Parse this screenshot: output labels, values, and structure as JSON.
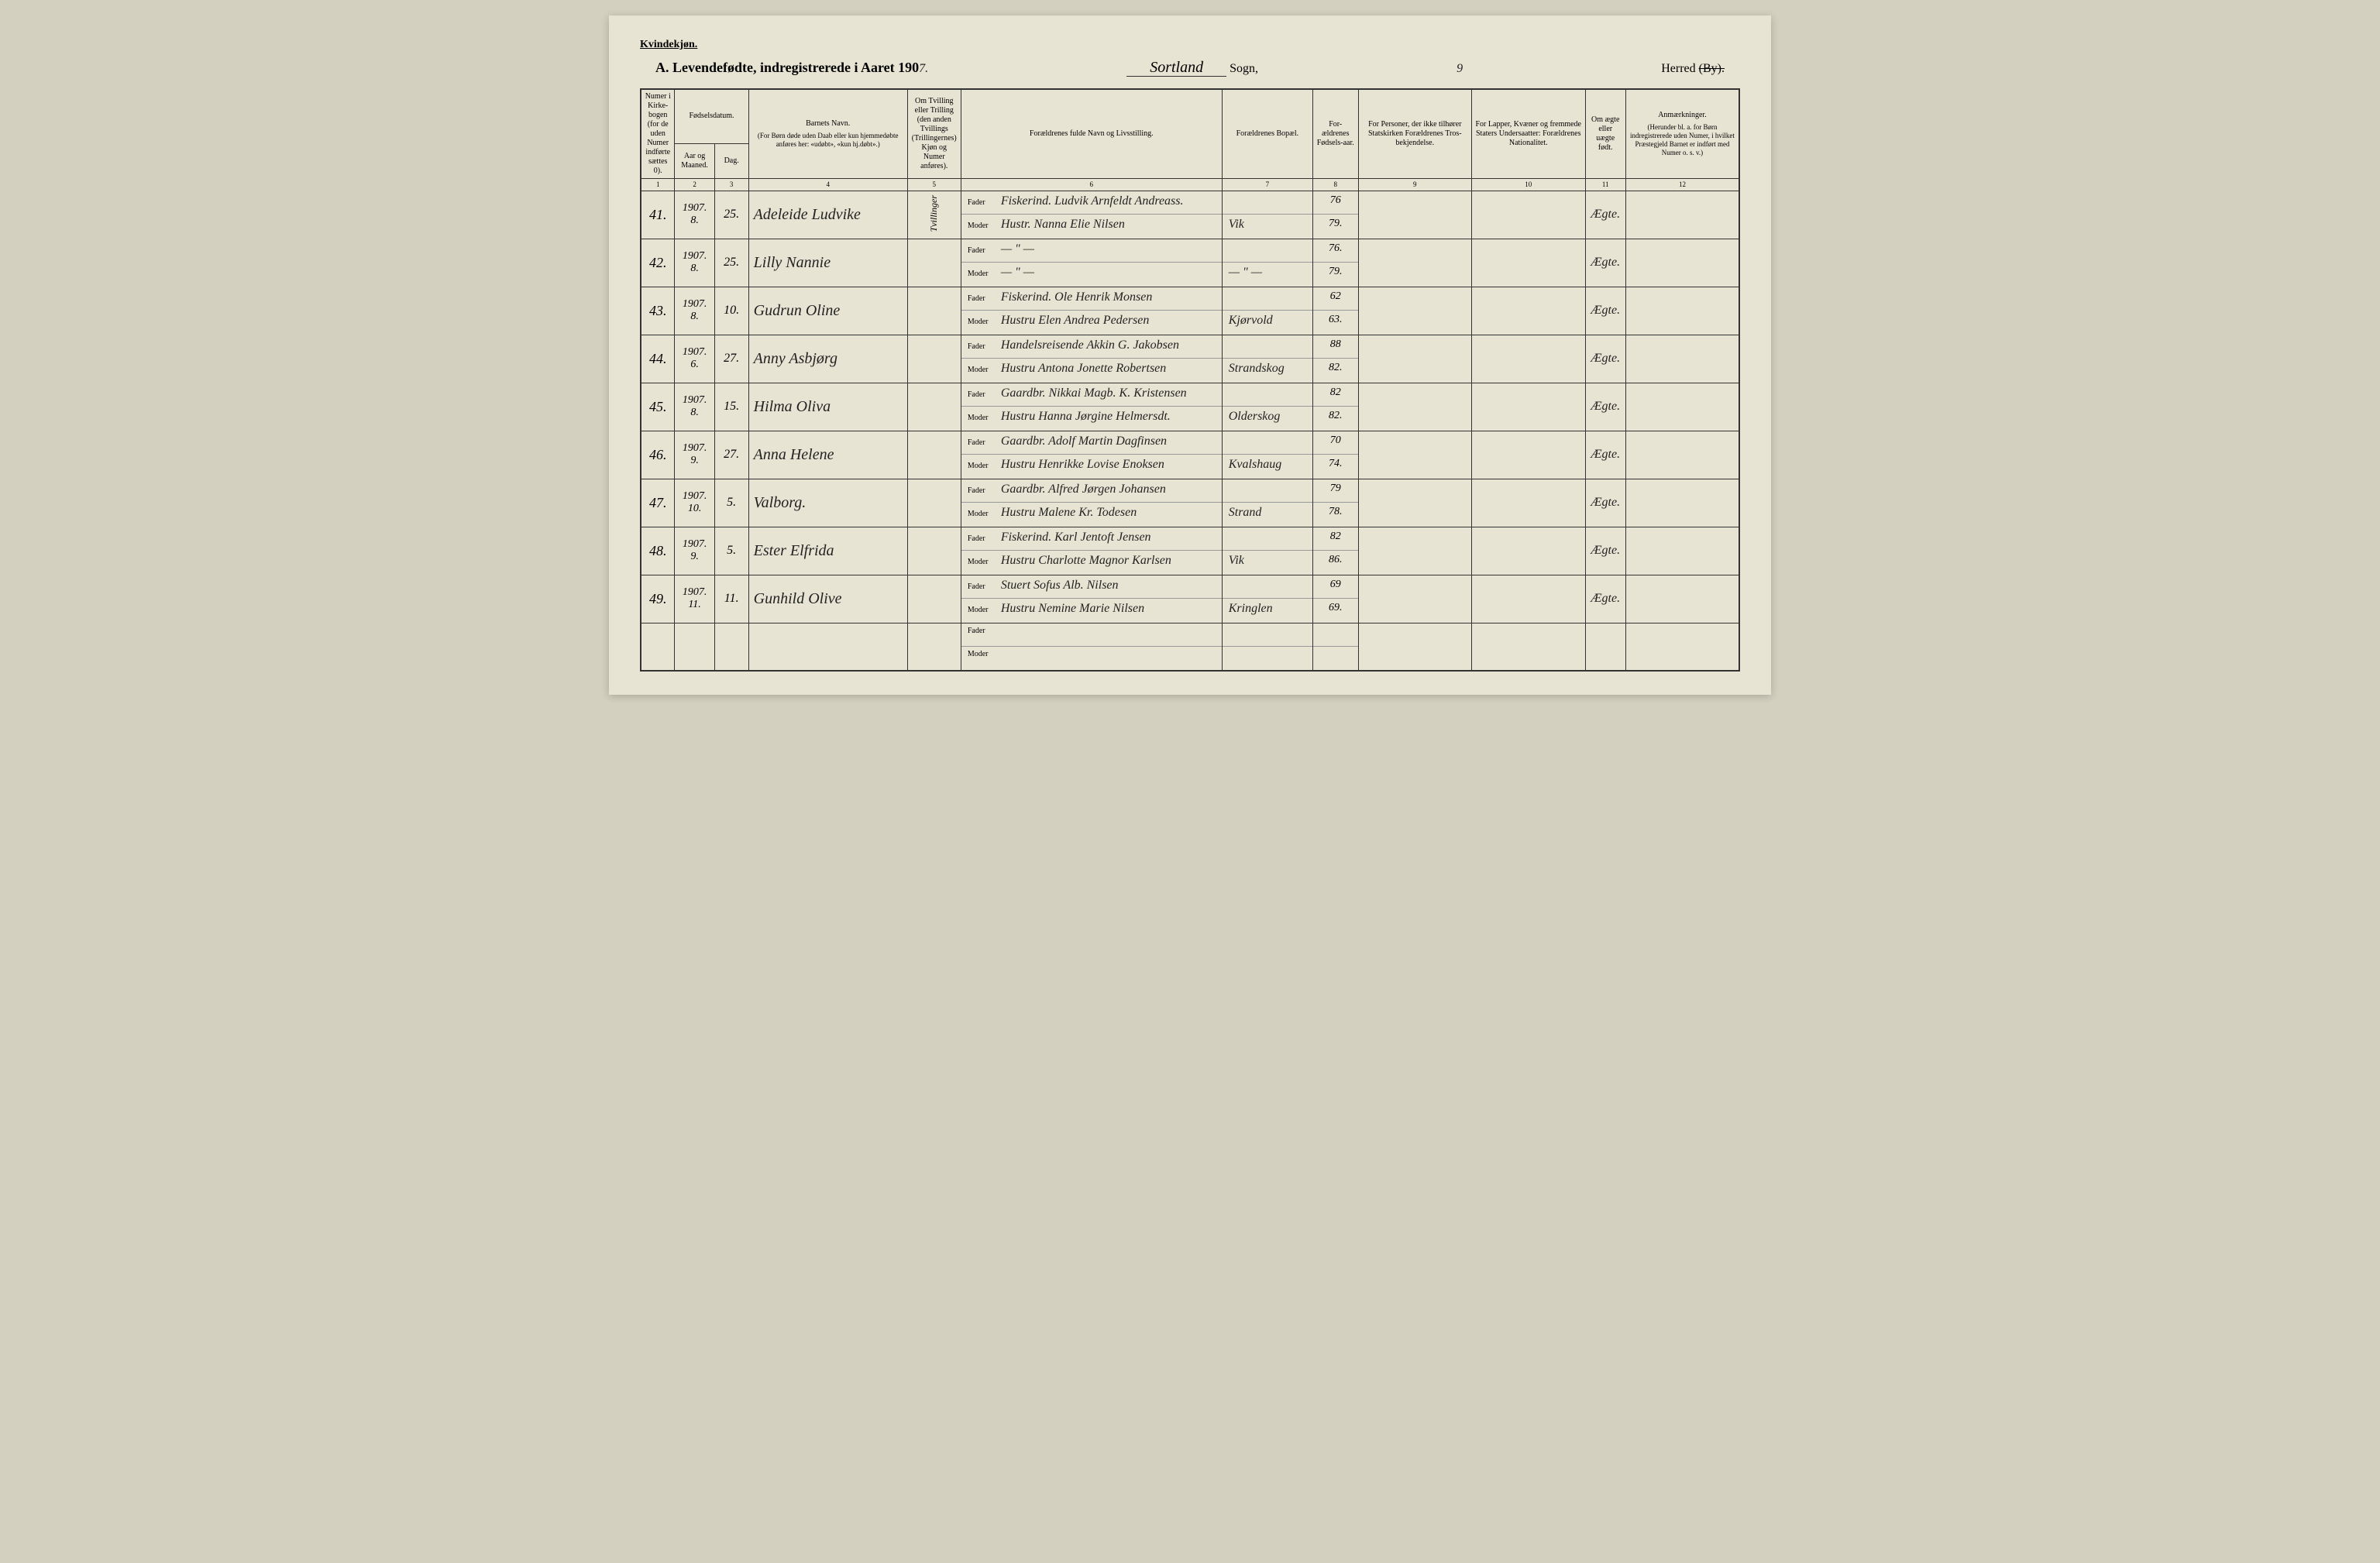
{
  "document": {
    "gender_label": "Kvindekjøn.",
    "title_prefix": "A.  Levendefødte, indregistrerede i Aaret 190",
    "year_suffix": "7.",
    "parish_name": "Sortland",
    "sogn_label": "Sogn,",
    "page_number": "9",
    "herred_label": "Herred",
    "herred_struck": "(By)."
  },
  "headers": {
    "col1": "Numer i Kirke-bogen (for de uden Numer indførte sættes 0).",
    "col_date": "Fødselsdatum.",
    "col2": "Aar og Maaned.",
    "col3": "Dag.",
    "col4": "Barnets Navn.",
    "col4_sub": "(For Børn døde uden Daab eller kun hjemmedøbte anføres her: «udøbt», «kun hj.døbt».)",
    "col5": "Om Tvilling eller Trilling (den anden Tvillings (Trillingernes) Kjøn og Numer anføres).",
    "col6": "Forældrenes fulde Navn og Livsstilling.",
    "col7": "Forældrenes Bopæl.",
    "col8": "For-ældrenes Fødsels-aar.",
    "col9": "For Personer, der ikke tilhører Statskirken Forældrenes Tros-bekjendelse.",
    "col10": "For Lapper, Kvæner og fremmede Staters Undersaatter: Forældrenes Nationalitet.",
    "col11": "Om ægte eller uægte født.",
    "col12": "Anmærkninger.",
    "col12_sub": "(Herunder bl. a. for Børn indregistrerede uden Numer, i hvilket Præstegjeld Barnet er indført med Numer o. s. v.)",
    "nums": [
      "1",
      "2",
      "3",
      "4",
      "5",
      "6",
      "7",
      "8",
      "9",
      "10",
      "11",
      "12"
    ]
  },
  "labels": {
    "fader": "Fader",
    "moder": "Moder"
  },
  "rows": [
    {
      "num": "41.",
      "year_month": "1907. 8.",
      "day": "25.",
      "name": "Adeleide Ludvike",
      "twin": "Tvillinger",
      "father": "Fiskerind. Ludvik Arnfeldt Andreass.",
      "mother": "Hustr. Nanna Elie Nilsen",
      "residence_f": "",
      "residence_m": "Vik",
      "year_f": "76",
      "year_m": "79.",
      "legit": "Ægte."
    },
    {
      "num": "42.",
      "year_month": "1907. 8.",
      "day": "25.",
      "name": "Lilly Nannie",
      "twin": "",
      "father": "— \" —",
      "mother": "— \" —",
      "residence_f": "",
      "residence_m": "— \" —",
      "year_f": "76.",
      "year_m": "79.",
      "legit": "Ægte."
    },
    {
      "num": "43.",
      "year_month": "1907. 8.",
      "day": "10.",
      "name": "Gudrun Oline",
      "twin": "",
      "father": "Fiskerind. Ole Henrik Monsen",
      "mother": "Hustru Elen Andrea Pedersen",
      "residence_f": "",
      "residence_m": "Kjørvold",
      "year_f": "62",
      "year_m": "63.",
      "legit": "Ægte."
    },
    {
      "num": "44.",
      "year_month": "1907. 6.",
      "day": "27.",
      "name": "Anny Asbjørg",
      "twin": "",
      "father": "Handelsreisende Akkin G. Jakobsen",
      "mother": "Hustru Antona Jonette Robertsen",
      "residence_f": "",
      "residence_m": "Strandskog",
      "year_f": "88",
      "year_m": "82.",
      "legit": "Ægte."
    },
    {
      "num": "45.",
      "year_month": "1907. 8.",
      "day": "15.",
      "name": "Hilma Oliva",
      "twin": "",
      "father": "Gaardbr. Nikkai Magb. K. Kristensen",
      "mother": "Hustru Hanna Jørgine Helmersdt.",
      "residence_f": "",
      "residence_m": "Olderskog",
      "year_f": "82",
      "year_m": "82.",
      "legit": "Ægte."
    },
    {
      "num": "46.",
      "year_month": "1907. 9.",
      "day": "27.",
      "name": "Anna Helene",
      "twin": "",
      "father": "Gaardbr. Adolf Martin Dagfinsen",
      "mother": "Hustru Henrikke Lovise Enoksen",
      "residence_f": "",
      "residence_m": "Kvalshaug",
      "year_f": "70",
      "year_m": "74.",
      "legit": "Ægte."
    },
    {
      "num": "47.",
      "year_month": "1907. 10.",
      "day": "5.",
      "name": "Valborg.",
      "twin": "",
      "father": "Gaardbr. Alfred Jørgen Johansen",
      "mother": "Hustru Malene Kr. Todesen",
      "residence_f": "",
      "residence_m": "Strand",
      "year_f": "79",
      "year_m": "78.",
      "legit": "Ægte."
    },
    {
      "num": "48.",
      "year_month": "1907. 9.",
      "day": "5.",
      "name": "Ester Elfrida",
      "twin": "",
      "father": "Fiskerind. Karl Jentoft Jensen",
      "mother": "Hustru Charlotte Magnor Karlsen",
      "residence_f": "",
      "residence_m": "Vik",
      "year_f": "82",
      "year_m": "86.",
      "legit": "Ægte."
    },
    {
      "num": "49.",
      "year_month": "1907. 11.",
      "day": "11.",
      "name": "Gunhild Olive",
      "twin": "",
      "father": "Stuert Sofus Alb. Nilsen",
      "mother": "Hustru Nemine Marie Nilsen",
      "residence_f": "",
      "residence_m": "Kringlen",
      "year_f": "69",
      "year_m": "69.",
      "legit": "Ægte."
    },
    {
      "num": "",
      "year_month": "",
      "day": "",
      "name": "",
      "twin": "",
      "father": "",
      "mother": "",
      "residence_f": "",
      "residence_m": "",
      "year_f": "",
      "year_m": "",
      "legit": ""
    }
  ],
  "styling": {
    "page_bg": "#e8e4d4",
    "outer_bg": "#d4d0c0",
    "border_color": "#333333",
    "text_color": "#222222",
    "header_font_size": 10,
    "body_font_size": 11,
    "cursive_font_size": 18
  }
}
